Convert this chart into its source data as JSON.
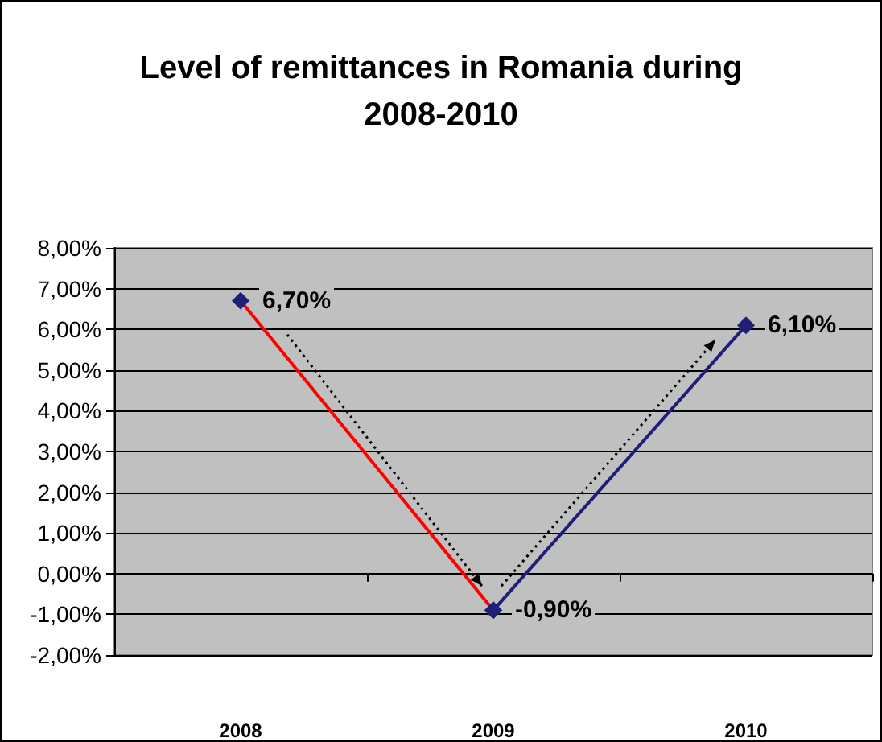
{
  "chart_data": {
    "type": "line",
    "title": "Level of remittances in Romania during\n2008-2010",
    "categories": [
      "2008",
      "2009",
      "2010"
    ],
    "series": [
      {
        "color": "#ff0000",
        "values": [
          6.7,
          -0.9,
          null
        ],
        "value_labels": [
          "6,70%",
          null,
          null
        ]
      },
      {
        "color": "#1f1f7a",
        "values": [
          null,
          -0.9,
          6.1
        ],
        "value_labels": [
          null,
          "-0,90%",
          "6,10%"
        ]
      }
    ],
    "ylim": [
      -2,
      8
    ],
    "yticks": [
      {
        "value": -2,
        "label": "-2,00%"
      },
      {
        "value": -1,
        "label": "-1,00%"
      },
      {
        "value": 0,
        "label": "0,00%"
      },
      {
        "value": 1,
        "label": "1,00%"
      },
      {
        "value": 2,
        "label": "2,00%"
      },
      {
        "value": 3,
        "label": "3,00%"
      },
      {
        "value": 4,
        "label": "4,00%"
      },
      {
        "value": 5,
        "label": "5,00%"
      },
      {
        "value": 6,
        "label": "6,00%"
      },
      {
        "value": 7,
        "label": "7,00%"
      },
      {
        "value": 8,
        "label": "8,00%"
      }
    ],
    "grid": "y",
    "marker": "diamond",
    "line_style": "solid"
  }
}
